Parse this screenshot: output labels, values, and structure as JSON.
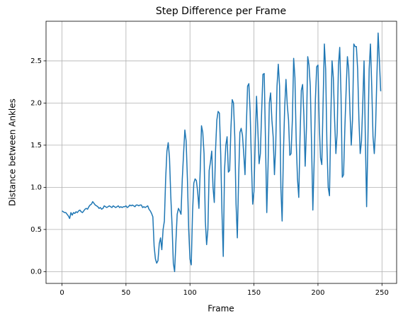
{
  "chart_data": {
    "type": "line",
    "title": "Step Difference per Frame",
    "xlabel": "Frame",
    "ylabel": "Distance between Ankles",
    "x": [
      0,
      1,
      2,
      3,
      4,
      5,
      6,
      7,
      8,
      9,
      10,
      11,
      12,
      13,
      14,
      15,
      16,
      17,
      18,
      19,
      20,
      21,
      22,
      23,
      24,
      25,
      26,
      27,
      28,
      29,
      30,
      31,
      32,
      33,
      34,
      35,
      36,
      37,
      38,
      39,
      40,
      41,
      42,
      43,
      44,
      45,
      46,
      47,
      48,
      49,
      50,
      51,
      52,
      53,
      54,
      55,
      56,
      57,
      58,
      59,
      60,
      61,
      62,
      63,
      64,
      65,
      66,
      67,
      68,
      69,
      70,
      71,
      72,
      73,
      74,
      75,
      76,
      77,
      78,
      79,
      80,
      81,
      82,
      83,
      84,
      85,
      86,
      87,
      88,
      89,
      90,
      91,
      92,
      93,
      94,
      95,
      96,
      97,
      98,
      99,
      100,
      101,
      102,
      103,
      104,
      105,
      106,
      107,
      108,
      109,
      110,
      111,
      112,
      113,
      114,
      115,
      116,
      117,
      118,
      119,
      120,
      121,
      122,
      123,
      124,
      125,
      126,
      127,
      128,
      129,
      130,
      131,
      132,
      133,
      134,
      135,
      136,
      137,
      138,
      139,
      140,
      141,
      142,
      143,
      144,
      145,
      146,
      147,
      148,
      149,
      150,
      151,
      152,
      153,
      154,
      155,
      156,
      157,
      158,
      159,
      160,
      161,
      162,
      163,
      164,
      165,
      166,
      167,
      168,
      169,
      170,
      171,
      172,
      173,
      174,
      175,
      176,
      177,
      178,
      179,
      180,
      181,
      182,
      183,
      184,
      185,
      186,
      187,
      188,
      189,
      190,
      191,
      192,
      193,
      194,
      195,
      196,
      197,
      198,
      199,
      200,
      201,
      202,
      203,
      204,
      205,
      206,
      207,
      208,
      209,
      210,
      211,
      212,
      213,
      214,
      215,
      216,
      217,
      218,
      219,
      220,
      221,
      222,
      223,
      224,
      225,
      226,
      227,
      228,
      229,
      230,
      231,
      232,
      233,
      234,
      235,
      236,
      237,
      238,
      239,
      240,
      241,
      242,
      243,
      244,
      245,
      246,
      247,
      248,
      249
    ],
    "series": [
      {
        "color": "#1f77b4",
        "values": [
          0.72,
          0.71,
          0.7,
          0.7,
          0.68,
          0.66,
          0.63,
          0.7,
          0.67,
          0.7,
          0.69,
          0.71,
          0.7,
          0.72,
          0.73,
          0.71,
          0.7,
          0.72,
          0.74,
          0.75,
          0.74,
          0.77,
          0.79,
          0.8,
          0.83,
          0.81,
          0.79,
          0.78,
          0.77,
          0.75,
          0.76,
          0.74,
          0.75,
          0.78,
          0.77,
          0.76,
          0.77,
          0.78,
          0.77,
          0.76,
          0.78,
          0.77,
          0.76,
          0.77,
          0.78,
          0.76,
          0.77,
          0.76,
          0.77,
          0.77,
          0.78,
          0.76,
          0.77,
          0.79,
          0.78,
          0.79,
          0.78,
          0.77,
          0.79,
          0.79,
          0.78,
          0.79,
          0.79,
          0.76,
          0.77,
          0.76,
          0.77,
          0.78,
          0.74,
          0.72,
          0.69,
          0.65,
          0.3,
          0.15,
          0.1,
          0.13,
          0.33,
          0.4,
          0.26,
          0.5,
          0.6,
          1.1,
          1.43,
          1.53,
          1.35,
          0.9,
          0.55,
          0.1,
          0.0,
          0.35,
          0.68,
          0.75,
          0.72,
          0.68,
          1.1,
          1.4,
          1.68,
          1.55,
          1.1,
          0.5,
          0.15,
          0.08,
          0.7,
          1.05,
          1.1,
          1.08,
          0.95,
          0.75,
          1.2,
          1.73,
          1.65,
          1.4,
          0.6,
          0.32,
          0.5,
          1.2,
          1.3,
          1.43,
          1.0,
          0.82,
          1.45,
          1.8,
          1.9,
          1.88,
          1.4,
          0.7,
          0.18,
          1.2,
          1.5,
          1.6,
          1.18,
          1.2,
          1.7,
          2.04,
          2.0,
          1.6,
          0.8,
          0.4,
          1.1,
          1.65,
          1.7,
          1.62,
          1.4,
          1.15,
          1.7,
          2.2,
          2.23,
          1.9,
          1.3,
          0.8,
          0.95,
          1.55,
          2.08,
          1.7,
          1.28,
          1.4,
          1.9,
          2.34,
          2.35,
          1.55,
          0.7,
          1.25,
          2.0,
          2.12,
          1.8,
          1.6,
          1.15,
          1.5,
          2.2,
          2.46,
          2.2,
          1.0,
          0.6,
          1.4,
          1.95,
          2.28,
          1.98,
          1.8,
          1.38,
          1.4,
          1.8,
          2.53,
          2.3,
          1.55,
          1.1,
          0.88,
          1.6,
          2.15,
          2.22,
          1.85,
          1.25,
          1.7,
          2.55,
          2.45,
          2.2,
          1.5,
          0.73,
          1.3,
          2.05,
          2.43,
          2.45,
          1.75,
          1.35,
          1.27,
          2.0,
          2.7,
          2.4,
          1.5,
          1.0,
          0.9,
          1.8,
          2.5,
          2.3,
          1.8,
          1.4,
          1.65,
          2.45,
          2.66,
          2.1,
          1.12,
          1.15,
          1.7,
          2.15,
          2.55,
          2.4,
          1.9,
          1.5,
          1.8,
          2.7,
          2.67,
          2.67,
          2.4,
          1.8,
          1.4,
          1.55,
          2.0,
          2.5,
          1.6,
          0.77,
          1.55,
          2.4,
          2.7,
          2.2,
          1.6,
          1.4,
          1.7,
          2.3,
          2.83,
          2.5,
          2.14
        ]
      }
    ],
    "xlim": [
      -12.45,
      261.45
    ],
    "ylim": [
      -0.14,
      2.97
    ],
    "xticks": [
      0,
      50,
      100,
      150,
      200,
      250
    ],
    "yticks": [
      {
        "value": 0,
        "label": "0.0"
      },
      0.5,
      {
        "value": 1,
        "label": "1.0"
      },
      1.5,
      {
        "value": 2,
        "label": "2.0"
      },
      2.5
    ],
    "grid": true
  }
}
